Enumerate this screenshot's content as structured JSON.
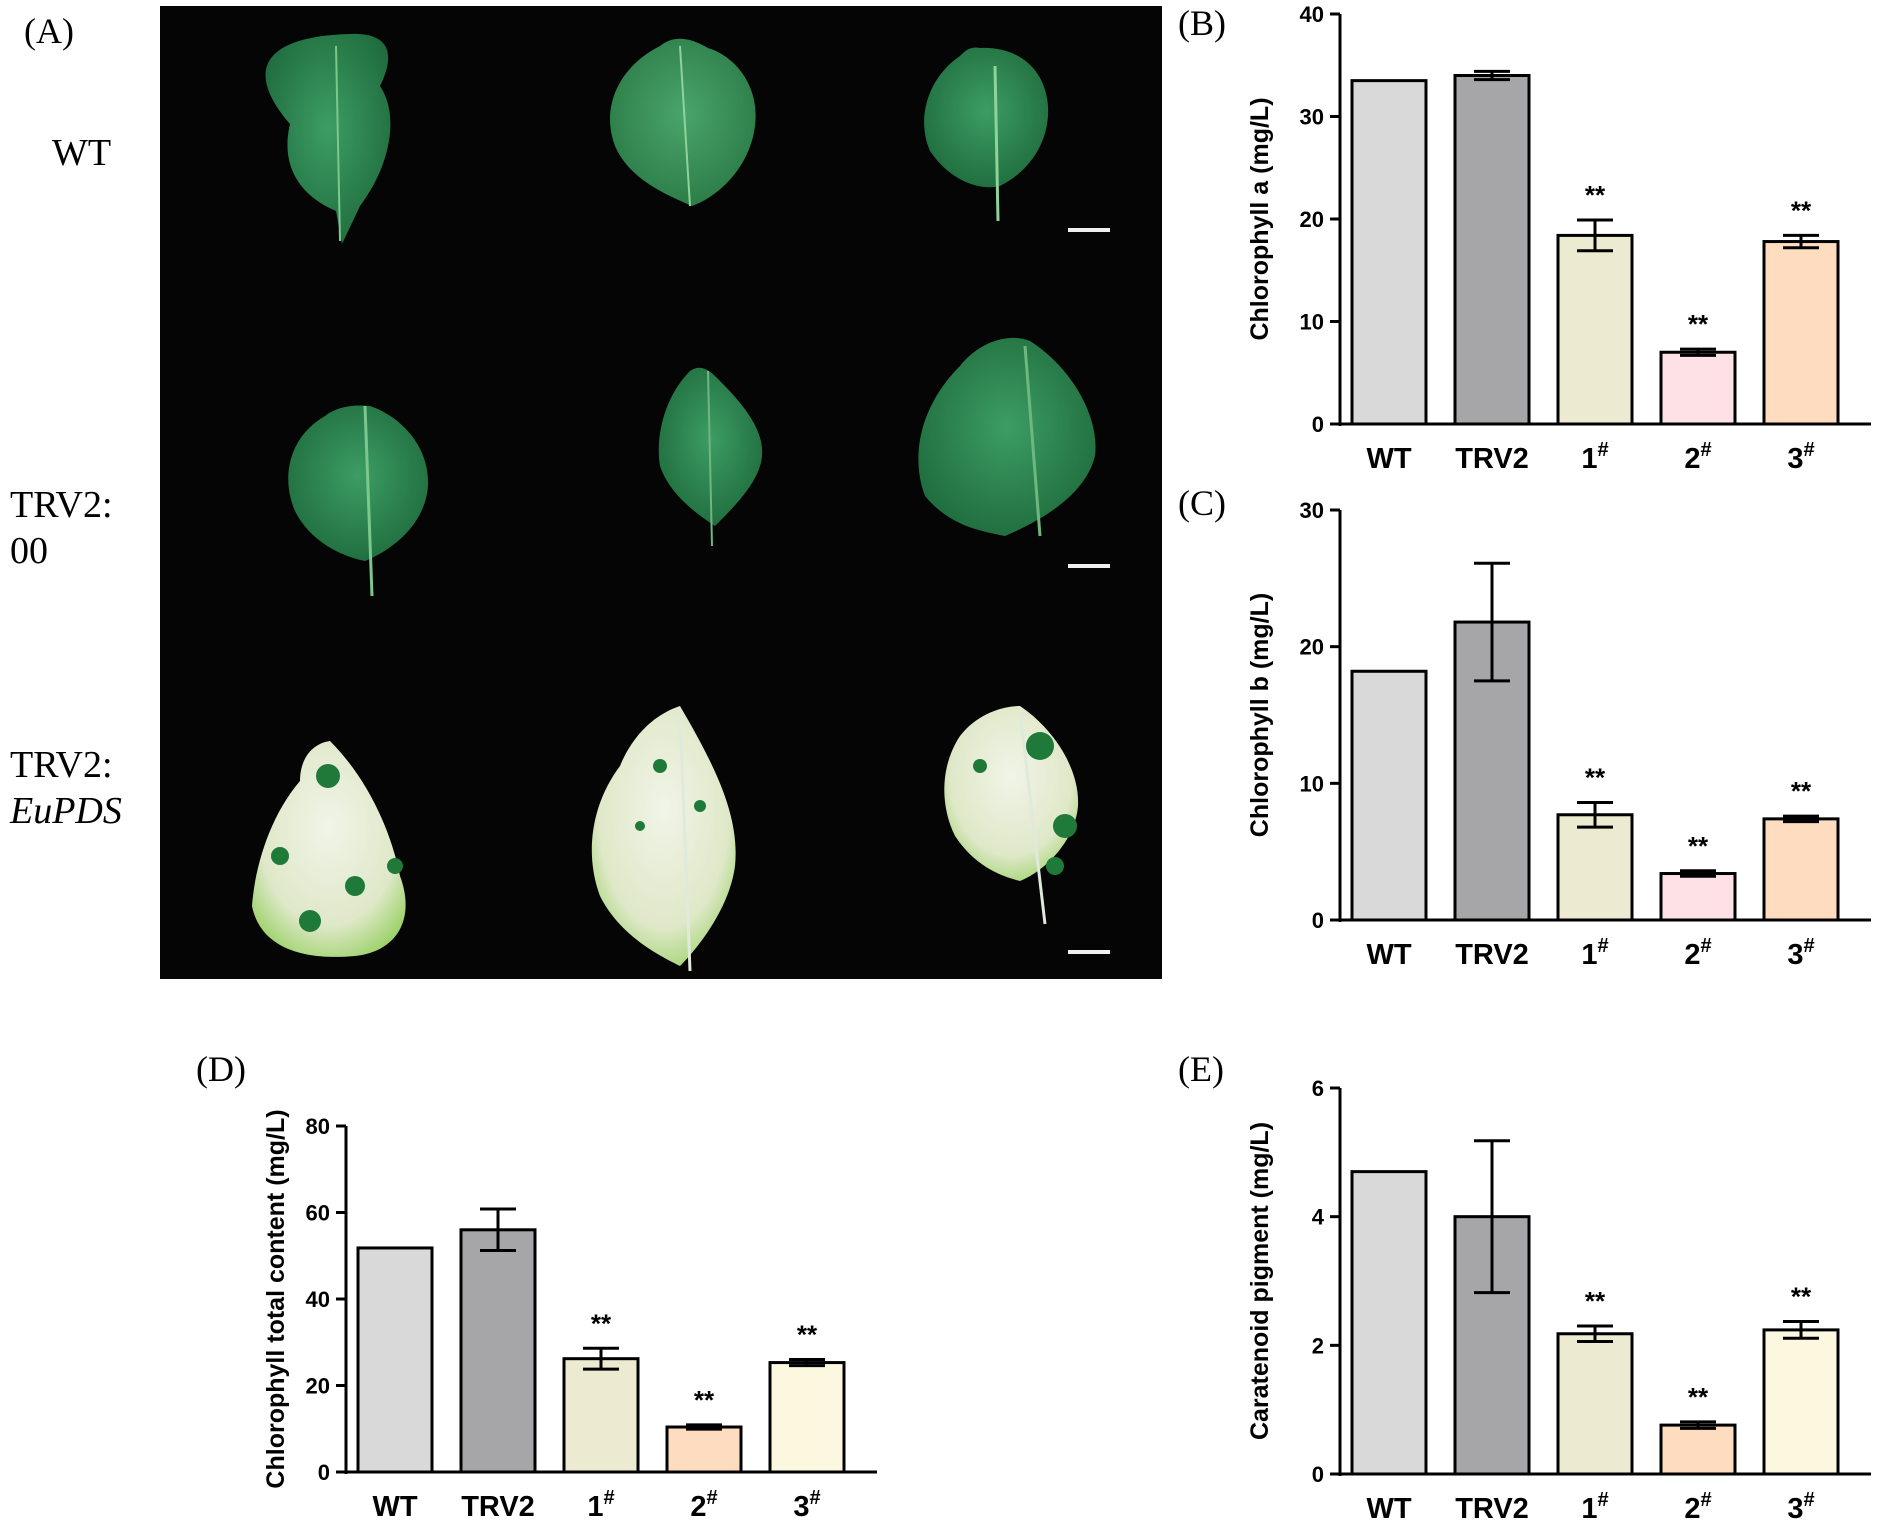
{
  "panels": {
    "A": "(A)",
    "B": "(B)",
    "C": "(C)",
    "D": "(D)",
    "E": "(E)"
  },
  "photo": {
    "rows": [
      {
        "line1": "WT",
        "line2": ""
      },
      {
        "line1": "TRV2:",
        "line2": "00"
      },
      {
        "line1": "TRV2:",
        "line2": "EuPDS"
      }
    ]
  },
  "colors": {
    "WT": "#d9d9d9",
    "TRV2": "#a6a6a9",
    "pale_green": "#ecead0",
    "pink": "#fde1e6",
    "peach": "#fddcc0",
    "pale_yellow": "#fcf8df"
  },
  "chart_data": [
    {
      "id": "B",
      "type": "bar",
      "categories": [
        "WT",
        "TRV2",
        "1",
        "2",
        "3"
      ],
      "category_superscripts": [
        "",
        "",
        "#",
        "#",
        "#"
      ],
      "values": [
        33.5,
        34.0,
        18.4,
        7.0,
        17.8
      ],
      "errors": [
        0,
        0.4,
        1.5,
        0.3,
        0.6
      ],
      "significance": [
        "",
        "",
        "**",
        "**",
        "**"
      ],
      "bar_colors": [
        "#d9d9d9",
        "#a6a6a9",
        "#ecead0",
        "#fde1e6",
        "#fddcc0"
      ],
      "ylabel": "Chlorophyll a (mg/L)",
      "ylim": [
        0,
        40
      ],
      "yticks": [
        0,
        10,
        20,
        30,
        40
      ]
    },
    {
      "id": "C",
      "type": "bar",
      "categories": [
        "WT",
        "TRV2",
        "1",
        "2",
        "3"
      ],
      "category_superscripts": [
        "",
        "",
        "#",
        "#",
        "#"
      ],
      "values": [
        18.2,
        21.8,
        7.7,
        3.4,
        7.4
      ],
      "errors": [
        0,
        4.3,
        0.9,
        0.2,
        0.2
      ],
      "significance": [
        "",
        "",
        "**",
        "**",
        "**"
      ],
      "bar_colors": [
        "#d9d9d9",
        "#a6a6a9",
        "#ecead0",
        "#fde1e6",
        "#fddcc0"
      ],
      "ylabel": "Chlorophyll b (mg/L)",
      "ylim": [
        0,
        30
      ],
      "yticks": [
        0,
        10,
        20,
        30
      ]
    },
    {
      "id": "D",
      "type": "bar",
      "categories": [
        "WT",
        "TRV2",
        "1",
        "2",
        "3"
      ],
      "category_superscripts": [
        "",
        "",
        "#",
        "#",
        "#"
      ],
      "values": [
        51.8,
        56.0,
        26.2,
        10.4,
        25.3
      ],
      "errors": [
        0,
        4.8,
        2.4,
        0.5,
        0.7
      ],
      "significance": [
        "",
        "",
        "**",
        "**",
        "**"
      ],
      "bar_colors": [
        "#d9d9d9",
        "#a6a6a9",
        "#ecead0",
        "#fddcc0",
        "#fcf8df"
      ],
      "ylabel": "Chlorophyll total content (mg/L)",
      "ylim": [
        0,
        80
      ],
      "yticks": [
        0,
        20,
        40,
        60,
        80
      ]
    },
    {
      "id": "E",
      "type": "bar",
      "categories": [
        "WT",
        "TRV2",
        "1",
        "2",
        "3"
      ],
      "category_superscripts": [
        "",
        "",
        "#",
        "#",
        "#"
      ],
      "values": [
        4.7,
        4.0,
        2.18,
        0.76,
        2.24
      ],
      "errors": [
        0,
        1.18,
        0.12,
        0.05,
        0.13
      ],
      "significance": [
        "",
        "",
        "**",
        "**",
        "**"
      ],
      "bar_colors": [
        "#d9d9d9",
        "#a6a6a9",
        "#ecead0",
        "#fddcc0",
        "#fcf8df"
      ],
      "ylabel": "Caratenoid pigment (mg/L)",
      "ylim": [
        0,
        6
      ],
      "yticks": [
        0,
        2,
        4,
        6
      ]
    }
  ]
}
